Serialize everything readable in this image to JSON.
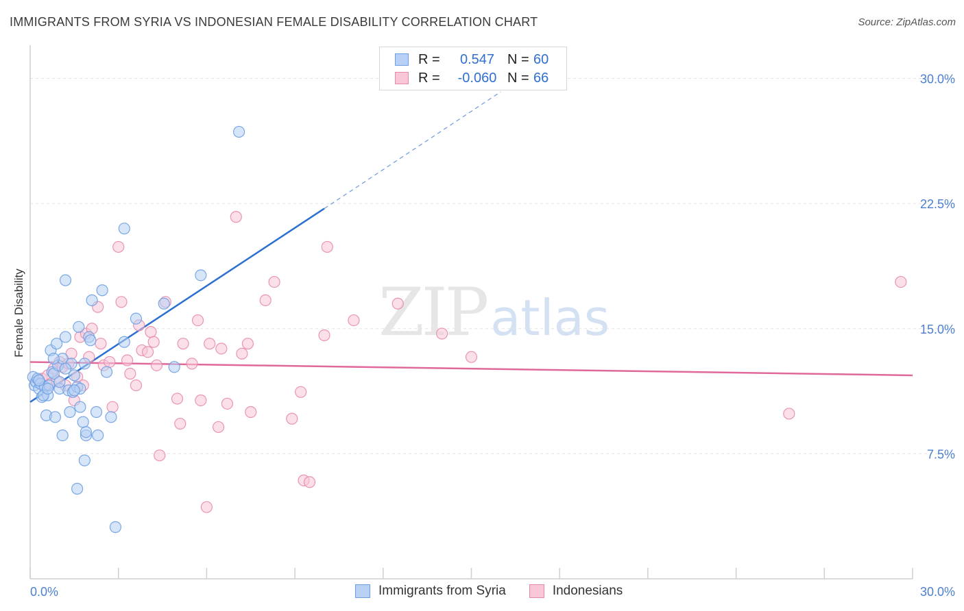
{
  "header": {
    "title": "IMMIGRANTS FROM SYRIA VS INDONESIAN FEMALE DISABILITY CORRELATION CHART",
    "source": "Source: ZipAtlas.com"
  },
  "watermark": {
    "zip": "ZIP",
    "atlas": "atlas"
  },
  "legend": {
    "r_label": "R =",
    "n_label": "N =",
    "series": [
      {
        "r": "0.547",
        "n": "60"
      },
      {
        "r": "-0.060",
        "n": "66"
      }
    ]
  },
  "bottom_legend": [
    "Immigrants from Syria",
    "Indonesians"
  ],
  "chart_data": {
    "type": "scatter",
    "title": "IMMIGRANTS FROM SYRIA VS INDONESIAN FEMALE DISABILITY CORRELATION CHART",
    "xlabel": "",
    "ylabel": "Female Disability",
    "xlim": [
      0,
      30
    ],
    "ylim": [
      0,
      31.5
    ],
    "x_tick_labels": [
      "0.0%",
      "30.0%"
    ],
    "y_ticks": [
      7.5,
      15.0,
      22.5,
      30.0
    ],
    "y_tick_labels": [
      "7.5%",
      "15.0%",
      "22.5%",
      "30.0%"
    ],
    "colors": {
      "syria": "#6c9ee3",
      "syria_fill": "#b7d0f3",
      "indo": "#e889aa",
      "indo_fill": "#f8c7d7",
      "syria_line": "#2a6fd1",
      "indo_line": "#e0689a"
    },
    "series": [
      {
        "name": "Immigrants from Syria",
        "r": 0.547,
        "n": 60,
        "trend": {
          "x0": 0.0,
          "y0": 10.6,
          "x1": 10.0,
          "y1": 22.2,
          "dashed_to_x": 16.0,
          "dashed_to_y": 29.2
        },
        "points": [
          [
            0.1,
            12.1
          ],
          [
            0.15,
            11.6
          ],
          [
            0.2,
            11.8
          ],
          [
            0.25,
            12.0
          ],
          [
            0.3,
            11.4
          ],
          [
            0.35,
            11.7
          ],
          [
            0.4,
            10.9
          ],
          [
            0.5,
            11.5
          ],
          [
            0.55,
            9.8
          ],
          [
            0.6,
            11.0
          ],
          [
            0.65,
            11.6
          ],
          [
            0.7,
            13.7
          ],
          [
            0.75,
            12.4
          ],
          [
            0.8,
            12.3
          ],
          [
            0.85,
            9.7
          ],
          [
            0.9,
            14.1
          ],
          [
            0.95,
            12.8
          ],
          [
            1.0,
            11.4
          ],
          [
            1.1,
            13.2
          ],
          [
            1.2,
            14.5
          ],
          [
            1.2,
            17.9
          ],
          [
            1.3,
            11.3
          ],
          [
            1.35,
            10.0
          ],
          [
            1.4,
            12.9
          ],
          [
            1.45,
            11.2
          ],
          [
            1.5,
            12.2
          ],
          [
            1.6,
            11.5
          ],
          [
            1.65,
            15.1
          ],
          [
            1.7,
            10.3
          ],
          [
            1.7,
            11.4
          ],
          [
            1.8,
            9.4
          ],
          [
            1.85,
            12.9
          ],
          [
            1.9,
            8.6
          ],
          [
            1.9,
            8.8
          ],
          [
            2.0,
            14.5
          ],
          [
            2.05,
            14.3
          ],
          [
            2.1,
            16.7
          ],
          [
            2.25,
            10.0
          ],
          [
            2.3,
            8.6
          ],
          [
            2.45,
            17.3
          ],
          [
            2.6,
            12.4
          ],
          [
            2.75,
            9.7
          ],
          [
            3.2,
            21.0
          ],
          [
            3.2,
            14.2
          ],
          [
            3.6,
            15.6
          ],
          [
            4.55,
            16.5
          ],
          [
            4.9,
            12.7
          ],
          [
            5.8,
            18.2
          ],
          [
            7.1,
            26.8
          ],
          [
            1.1,
            8.6
          ],
          [
            1.85,
            7.1
          ],
          [
            1.6,
            5.4
          ],
          [
            2.9,
            3.1
          ],
          [
            0.45,
            11.0
          ],
          [
            1.0,
            11.8
          ],
          [
            0.3,
            11.9
          ],
          [
            0.6,
            11.4
          ],
          [
            1.5,
            11.3
          ],
          [
            0.8,
            13.2
          ],
          [
            1.2,
            12.6
          ]
        ]
      },
      {
        "name": "Indonesians",
        "r": -0.06,
        "n": 66,
        "trend": {
          "x0": 0.0,
          "y0": 13.0,
          "x1": 30.0,
          "y1": 12.2
        },
        "points": [
          [
            0.2,
            11.8
          ],
          [
            0.4,
            12.0
          ],
          [
            0.5,
            11.5
          ],
          [
            0.6,
            12.2
          ],
          [
            0.7,
            11.7
          ],
          [
            0.8,
            12.6
          ],
          [
            0.9,
            11.9
          ],
          [
            1.0,
            13.0
          ],
          [
            1.1,
            12.7
          ],
          [
            1.2,
            11.6
          ],
          [
            1.3,
            12.9
          ],
          [
            1.4,
            13.5
          ],
          [
            1.5,
            10.7
          ],
          [
            1.6,
            12.1
          ],
          [
            1.7,
            14.5
          ],
          [
            1.8,
            11.6
          ],
          [
            1.9,
            14.7
          ],
          [
            2.0,
            13.3
          ],
          [
            2.1,
            15.0
          ],
          [
            2.3,
            16.3
          ],
          [
            2.4,
            14.1
          ],
          [
            2.5,
            12.8
          ],
          [
            2.7,
            13.0
          ],
          [
            2.8,
            10.3
          ],
          [
            3.0,
            19.9
          ],
          [
            3.1,
            16.6
          ],
          [
            3.3,
            13.1
          ],
          [
            3.4,
            12.3
          ],
          [
            3.6,
            11.6
          ],
          [
            3.7,
            15.2
          ],
          [
            3.8,
            13.7
          ],
          [
            4.0,
            13.6
          ],
          [
            4.1,
            14.8
          ],
          [
            4.2,
            14.2
          ],
          [
            4.3,
            12.8
          ],
          [
            4.4,
            7.4
          ],
          [
            4.6,
            16.6
          ],
          [
            5.0,
            10.8
          ],
          [
            5.1,
            9.3
          ],
          [
            5.2,
            14.1
          ],
          [
            5.5,
            12.9
          ],
          [
            5.7,
            15.5
          ],
          [
            5.8,
            10.7
          ],
          [
            6.0,
            4.3
          ],
          [
            6.1,
            14.1
          ],
          [
            6.4,
            9.1
          ],
          [
            6.5,
            13.8
          ],
          [
            6.7,
            10.5
          ],
          [
            7.0,
            21.7
          ],
          [
            7.2,
            13.5
          ],
          [
            7.4,
            14.1
          ],
          [
            7.5,
            10.0
          ],
          [
            8.0,
            16.7
          ],
          [
            8.3,
            17.8
          ],
          [
            8.9,
            9.6
          ],
          [
            9.2,
            11.2
          ],
          [
            9.3,
            5.9
          ],
          [
            9.5,
            5.8
          ],
          [
            10.0,
            14.6
          ],
          [
            10.1,
            19.9
          ],
          [
            11.0,
            15.5
          ],
          [
            12.5,
            16.5
          ],
          [
            14.0,
            14.7
          ],
          [
            15.0,
            13.3
          ],
          [
            25.8,
            9.9
          ],
          [
            29.6,
            17.8
          ]
        ]
      }
    ]
  }
}
